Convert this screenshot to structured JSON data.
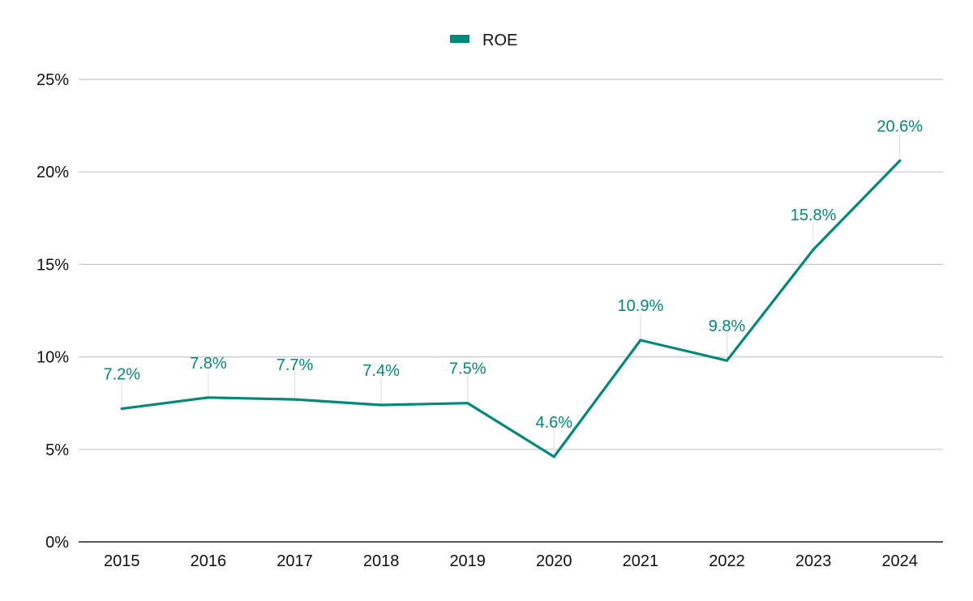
{
  "chart_data": {
    "type": "line",
    "title": "",
    "xlabel": "",
    "ylabel": "",
    "categories": [
      "2015",
      "2016",
      "2017",
      "2018",
      "2019",
      "2020",
      "2021",
      "2022",
      "2023",
      "2024"
    ],
    "series": [
      {
        "name": "ROE",
        "values": [
          7.2,
          7.8,
          7.7,
          7.4,
          7.5,
          4.6,
          10.9,
          9.8,
          15.8,
          20.6
        ],
        "labels": [
          "7.2%",
          "7.8%",
          "7.7%",
          "7.4%",
          "7.5%",
          "4.6%",
          "10.9%",
          "9.8%",
          "15.8%",
          "20.6%"
        ],
        "color": "#00897b"
      }
    ],
    "ylim": [
      0,
      25
    ],
    "yticks": [
      0,
      5,
      10,
      15,
      20,
      25
    ],
    "ytick_labels": [
      "0%",
      "5%",
      "10%",
      "15%",
      "20%",
      "25%"
    ],
    "grid": true,
    "legend_position": "top-center",
    "gridline_color": "#c8c8c8",
    "axis_color": "#222222"
  }
}
